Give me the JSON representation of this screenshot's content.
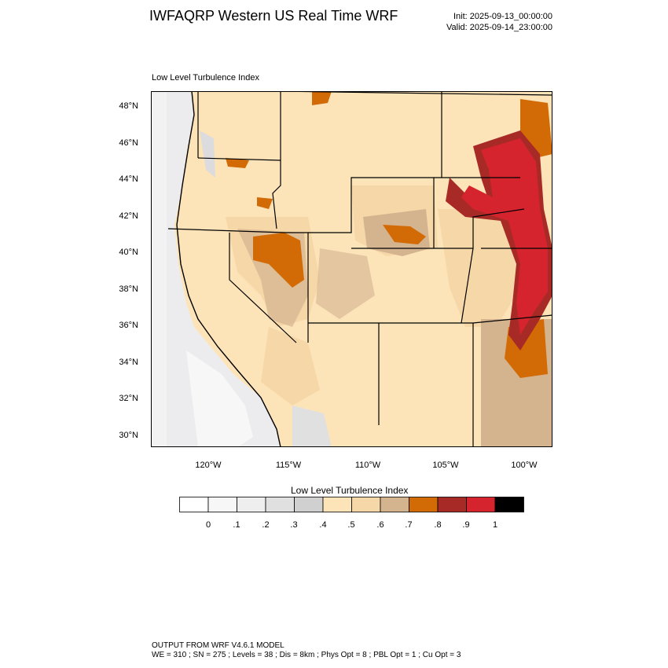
{
  "header": {
    "title": "IWFAQRP Western US Real Time WRF",
    "init": "Init: 2025-09-13_00:00:00",
    "valid": "Valid: 2025-09-14_23:00:00"
  },
  "map": {
    "subtitle": "Low Level Turbulence Index",
    "lat_labels": [
      "48°N",
      "46°N",
      "44°N",
      "42°N",
      "40°N",
      "38°N",
      "36°N",
      "34°N",
      "32°N",
      "30°N"
    ],
    "lon_labels": [
      "120°W",
      "115°W",
      "110°W",
      "105°W",
      "100°W"
    ],
    "colors": {
      "ocean_light": "#ececee",
      "ocean_mid": "#dcdcde",
      "land_pale": "#fde4b8",
      "land_tan": "#f5d7a8",
      "land_brown": "#d4b48f",
      "orange": "#d26a05",
      "red_dark": "#a82a27",
      "red": "#d6242f",
      "black": "#000000"
    }
  },
  "colorbar": {
    "title": "Low Level Turbulence Index",
    "labels": [
      "0",
      ".1",
      ".2",
      ".3",
      ".4",
      ".5",
      ".6",
      ".7",
      ".8",
      ".9",
      "1"
    ],
    "colors": [
      "#ffffff",
      "#f7f7f7",
      "#eeeeee",
      "#e0e0e0",
      "#d0d0d0",
      "#fde4b8",
      "#f5d7a8",
      "#d4b48f",
      "#d26a05",
      "#a82a27",
      "#d6242f",
      "#000000"
    ]
  },
  "footer": {
    "line1": "OUTPUT FROM WRF V4.6.1 MODEL",
    "line2": "WE = 310 ; SN = 275 ; Levels = 38 ; Dis = 8km ; Phys Opt = 8 ; PBL Opt = 1 ; Cu Opt = 3"
  }
}
